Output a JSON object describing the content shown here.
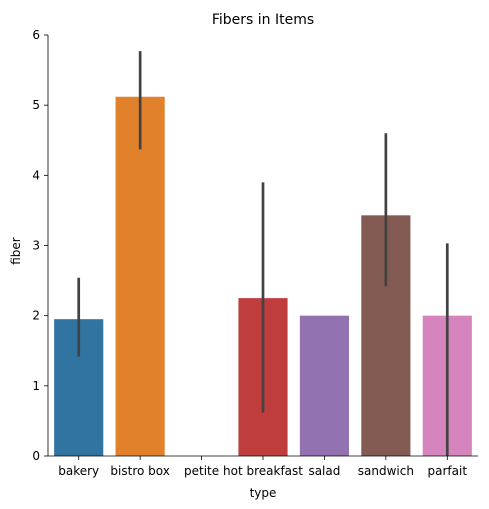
{
  "chart_data": {
    "type": "bar",
    "title": "Fibers in Items",
    "xlabel": "type",
    "ylabel": "fiber",
    "categories": [
      "bakery",
      "bistro box",
      "petite",
      "hot breakfast",
      "salad",
      "sandwich",
      "parfait"
    ],
    "values": [
      1.95,
      5.12,
      0,
      2.25,
      2.0,
      3.43,
      2.0
    ],
    "error_bars": [
      [
        1.42,
        2.54
      ],
      [
        4.37,
        5.77
      ],
      null,
      [
        0.62,
        3.9
      ],
      null,
      [
        2.42,
        4.6
      ],
      [
        0.0,
        3.03
      ]
    ],
    "colors": [
      "#3274a1",
      "#e1812c",
      "#3a923a",
      "#c03d3e",
      "#9372b2",
      "#845b53",
      "#d684bd"
    ],
    "ylim": [
      0,
      6
    ],
    "yticks": [
      0,
      1,
      2,
      3,
      4,
      5,
      6
    ],
    "grid": false,
    "legend": "none"
  }
}
